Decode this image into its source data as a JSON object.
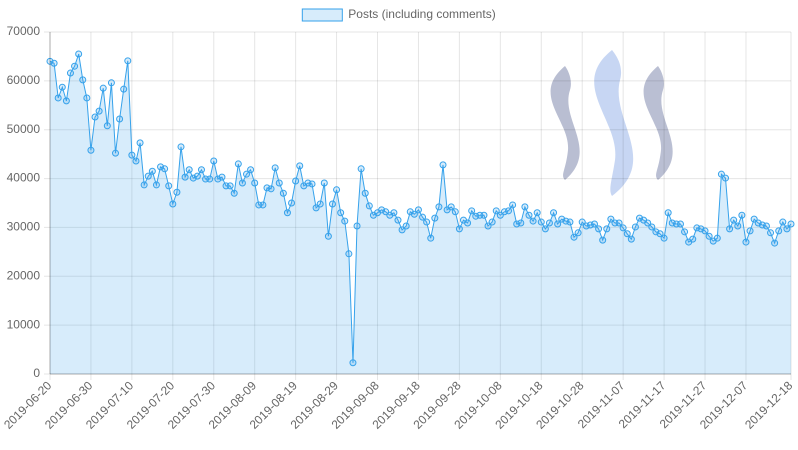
{
  "chart_data": {
    "type": "line",
    "x": [
      "2019-06-20",
      "2019-06-21",
      "2019-06-22",
      "2019-06-23",
      "2019-06-24",
      "2019-06-25",
      "2019-06-26",
      "2019-06-27",
      "2019-06-28",
      "2019-06-29",
      "2019-06-30",
      "2019-07-01",
      "2019-07-02",
      "2019-07-03",
      "2019-07-04",
      "2019-07-05",
      "2019-07-06",
      "2019-07-07",
      "2019-07-08",
      "2019-07-09",
      "2019-07-10",
      "2019-07-11",
      "2019-07-12",
      "2019-07-13",
      "2019-07-14",
      "2019-07-15",
      "2019-07-16",
      "2019-07-17",
      "2019-07-18",
      "2019-07-19",
      "2019-07-20",
      "2019-07-21",
      "2019-07-22",
      "2019-07-23",
      "2019-07-24",
      "2019-07-25",
      "2019-07-26",
      "2019-07-27",
      "2019-07-28",
      "2019-07-29",
      "2019-07-30",
      "2019-07-31",
      "2019-08-01",
      "2019-08-02",
      "2019-08-03",
      "2019-08-04",
      "2019-08-05",
      "2019-08-06",
      "2019-08-07",
      "2019-08-08",
      "2019-08-09",
      "2019-08-10",
      "2019-08-11",
      "2019-08-12",
      "2019-08-13",
      "2019-08-14",
      "2019-08-15",
      "2019-08-16",
      "2019-08-17",
      "2019-08-18",
      "2019-08-19",
      "2019-08-20",
      "2019-08-21",
      "2019-08-22",
      "2019-08-23",
      "2019-08-24",
      "2019-08-25",
      "2019-08-26",
      "2019-08-27",
      "2019-08-28",
      "2019-08-29",
      "2019-08-30",
      "2019-08-31",
      "2019-09-01",
      "2019-09-02",
      "2019-09-03",
      "2019-09-04",
      "2019-09-05",
      "2019-09-06",
      "2019-09-07",
      "2019-09-08",
      "2019-09-09",
      "2019-09-10",
      "2019-09-11",
      "2019-09-12",
      "2019-09-13",
      "2019-09-14",
      "2019-09-15",
      "2019-09-16",
      "2019-09-17",
      "2019-09-18",
      "2019-09-19",
      "2019-09-20",
      "2019-09-21",
      "2019-09-22",
      "2019-09-23",
      "2019-09-24",
      "2019-09-25",
      "2019-09-26",
      "2019-09-27",
      "2019-09-28",
      "2019-09-29",
      "2019-09-30",
      "2019-10-01",
      "2019-10-02",
      "2019-10-03",
      "2019-10-04",
      "2019-10-05",
      "2019-10-06",
      "2019-10-07",
      "2019-10-08",
      "2019-10-09",
      "2019-10-10",
      "2019-10-11",
      "2019-10-12",
      "2019-10-13",
      "2019-10-14",
      "2019-10-15",
      "2019-10-16",
      "2019-10-17",
      "2019-10-18",
      "2019-10-19",
      "2019-10-20",
      "2019-10-21",
      "2019-10-22",
      "2019-10-23",
      "2019-10-24",
      "2019-10-25",
      "2019-10-26",
      "2019-10-27",
      "2019-10-28",
      "2019-10-29",
      "2019-10-30",
      "2019-10-31",
      "2019-11-01",
      "2019-11-02",
      "2019-11-03",
      "2019-11-04",
      "2019-11-05",
      "2019-11-06",
      "2019-11-07",
      "2019-11-08",
      "2019-11-09",
      "2019-11-10",
      "2019-11-11",
      "2019-11-12",
      "2019-11-13",
      "2019-11-14",
      "2019-11-15",
      "2019-11-16",
      "2019-11-17",
      "2019-11-18",
      "2019-11-19",
      "2019-11-20",
      "2019-11-21",
      "2019-11-22",
      "2019-11-23",
      "2019-11-24",
      "2019-11-25",
      "2019-11-26",
      "2019-11-27",
      "2019-11-28",
      "2019-11-29",
      "2019-11-30",
      "2019-12-01",
      "2019-12-02",
      "2019-12-03",
      "2019-12-04",
      "2019-12-05",
      "2019-12-06",
      "2019-12-07",
      "2019-12-08",
      "2019-12-09",
      "2019-12-10",
      "2019-12-11",
      "2019-12-12",
      "2019-12-13",
      "2019-12-14",
      "2019-12-15",
      "2019-12-16",
      "2019-12-17",
      "2019-12-18"
    ],
    "series": [
      {
        "name": "Posts (including comments)",
        "color": "#36a2eb",
        "fill": "rgba(54,162,235,0.2)",
        "values": [
          64000,
          63600,
          56500,
          58700,
          55900,
          61600,
          63000,
          65500,
          60200,
          56500,
          45800,
          52600,
          53800,
          58500,
          50800,
          59600,
          45200,
          52200,
          58300,
          64100,
          44800,
          43600,
          47300,
          38700,
          40500,
          41500,
          38700,
          42400,
          42000,
          38500,
          34800,
          37200,
          46500,
          40300,
          41800,
          40100,
          40500,
          41800,
          39900,
          39900,
          43600,
          39900,
          40300,
          38500,
          38500,
          37000,
          43000,
          39100,
          40900,
          41800,
          39100,
          34600,
          34600,
          38100,
          37900,
          42200,
          39100,
          37000,
          33000,
          35000,
          39500,
          42600,
          38500,
          39100,
          38900,
          34000,
          34800,
          39100,
          28200,
          34800,
          37700,
          33000,
          31300,
          24600,
          2300,
          30300,
          42000,
          37000,
          34400,
          32500,
          33000,
          33600,
          33200,
          32500,
          33000,
          31500,
          29500,
          30300,
          33200,
          32700,
          33600,
          32100,
          31100,
          27800,
          31900,
          34200,
          42800,
          33600,
          34200,
          33200,
          29700,
          31500,
          30900,
          33400,
          32300,
          32500,
          32500,
          30300,
          31100,
          33400,
          32500,
          33200,
          33400,
          34600,
          30700,
          30900,
          34200,
          32500,
          31300,
          33000,
          31100,
          29700,
          30900,
          33000,
          30700,
          31700,
          31300,
          31100,
          28000,
          28900,
          31100,
          30300,
          30500,
          30700,
          29700,
          27400,
          29700,
          31700,
          30900,
          30900,
          29900,
          28700,
          27600,
          30100,
          31900,
          31500,
          30900,
          30100,
          29100,
          28700,
          27800,
          33000,
          30900,
          30700,
          30700,
          29100,
          27000,
          27600,
          29900,
          29700,
          29300,
          28200,
          27200,
          27800,
          40900,
          40100,
          29700,
          31500,
          30300,
          32500,
          27000,
          29300,
          31700,
          30900,
          30500,
          30300,
          28900,
          26800,
          29300,
          31100,
          29700,
          30700
        ]
      }
    ],
    "xlim": [
      "2019-06-20",
      "2019-12-18"
    ],
    "xticks": [
      "2019-06-20",
      "2019-06-30",
      "2019-07-10",
      "2019-07-20",
      "2019-07-30",
      "2019-08-09",
      "2019-08-19",
      "2019-08-29",
      "2019-09-08",
      "2019-09-18",
      "2019-09-28",
      "2019-10-08",
      "2019-10-18",
      "2019-10-28",
      "2019-11-07",
      "2019-11-17",
      "2019-11-27",
      "2019-12-07",
      "2019-12-18"
    ],
    "ylim": [
      0,
      70000
    ],
    "yticks": [
      0,
      10000,
      20000,
      30000,
      40000,
      50000,
      60000,
      70000
    ],
    "grid": true,
    "legend": "top"
  }
}
